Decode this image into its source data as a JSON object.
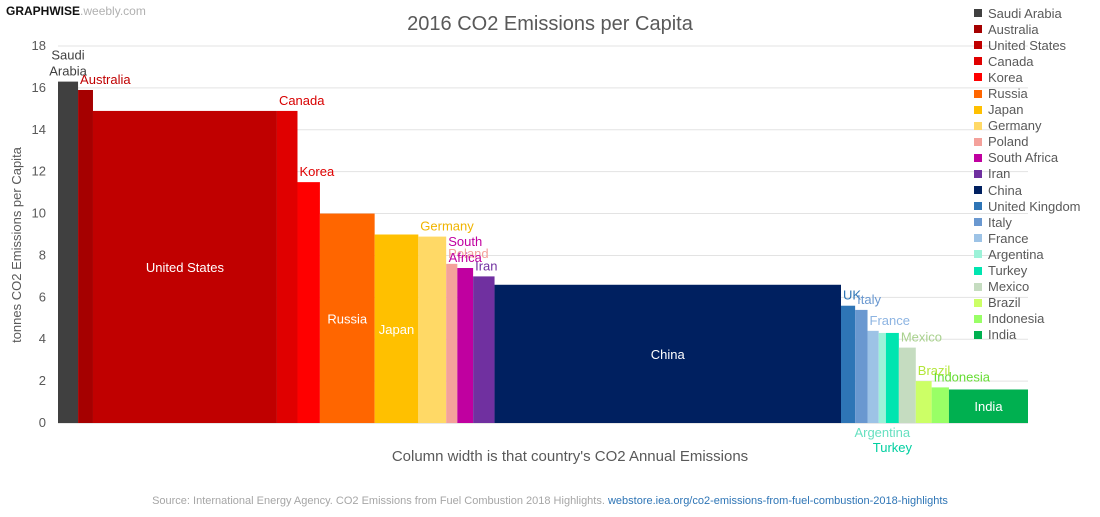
{
  "watermark": {
    "bold": "GRAPHWISE",
    "light": ".weebly.com"
  },
  "source": {
    "text": "Source: International Energy Agency. CO2 Emissions from Fuel Combustion 2018 Highlights.",
    "link": "webstore.iea.org/co2-emissions-from-fuel-combustion-2018-highlights",
    "link_color": "#2e75b6"
  },
  "chart_data": {
    "type": "bar",
    "variant": "variable-width",
    "title": "2016 CO2 Emissions per Capita",
    "ylabel": "tonnes CO2 Emissions per Capita",
    "xlabel": "Column width is that country's CO2 Annual Emissions",
    "ylim": [
      0,
      18
    ],
    "yticks": [
      0,
      2,
      4,
      6,
      8,
      10,
      12,
      14,
      16,
      18
    ],
    "grid": true,
    "legend_position": "right",
    "series": [
      {
        "name": "Saudi Arabia",
        "label": "Saudi Arabia",
        "value": 16.3,
        "width": 527,
        "color": "#404040",
        "label_color": "#404040",
        "label_mode": "above"
      },
      {
        "name": "Australia",
        "label": "Australia",
        "value": 15.9,
        "width": 392,
        "color": "#a50000",
        "label_color": "#c00000",
        "label_mode": "above"
      },
      {
        "name": "United States",
        "label": "United States",
        "value": 14.9,
        "width": 4833,
        "color": "#c00000",
        "label_color": "#ffffff",
        "label_mode": "inside"
      },
      {
        "name": "Canada",
        "label": "Canada",
        "value": 14.9,
        "width": 540,
        "color": "#e00000",
        "label_color": "#d80000",
        "label_mode": "above"
      },
      {
        "name": "Korea",
        "label": "Korea",
        "value": 11.5,
        "width": 589,
        "color": "#ff0000",
        "label_color": "#e00000",
        "label_mode": "above"
      },
      {
        "name": "Russia",
        "label": "Russia",
        "value": 10.0,
        "width": 1438,
        "color": "#ff6600",
        "label_color": "#ffffff",
        "label_mode": "inside"
      },
      {
        "name": "Japan",
        "label": "Japan",
        "value": 9.0,
        "width": 1147,
        "color": "#ffc000",
        "label_color": "#ffffff",
        "label_mode": "inside"
      },
      {
        "name": "Germany",
        "label": "Germany",
        "value": 8.9,
        "width": 732,
        "color": "#ffd966",
        "label_color": "#f0b400",
        "label_mode": "above"
      },
      {
        "name": "Poland",
        "label": "Poland",
        "value": 7.6,
        "width": 293,
        "color": "#f4a19b",
        "label_color": "#f4a19b",
        "label_mode": "above"
      },
      {
        "name": "South Africa",
        "label": "South Africa",
        "value": 7.4,
        "width": 415,
        "color": "#c000a0",
        "label_color": "#c000a0",
        "label_mode": "above"
      },
      {
        "name": "Iran",
        "label": "Iran",
        "value": 7.0,
        "width": 563,
        "color": "#7030a0",
        "label_color": "#7030a0",
        "label_mode": "above"
      },
      {
        "name": "China",
        "label": "China",
        "value": 6.6,
        "width": 9102,
        "color": "#002060",
        "label_color": "#ffffff",
        "label_mode": "inside"
      },
      {
        "name": "United Kingdom",
        "label": "UK",
        "value": 5.6,
        "width": 371,
        "color": "#2e75b6",
        "label_color": "#2e75b6",
        "label_mode": "above"
      },
      {
        "name": "Italy",
        "label": "Italy",
        "value": 5.4,
        "width": 326,
        "color": "#6a98d0",
        "label_color": "#6a98d0",
        "label_mode": "above"
      },
      {
        "name": "France",
        "label": "France",
        "value": 4.4,
        "width": 293,
        "color": "#9dc3e6",
        "label_color": "#8db4e2",
        "label_mode": "above"
      },
      {
        "name": "Argentina",
        "label": "Argentina",
        "value": 4.3,
        "width": 190,
        "color": "#9cf2d8",
        "label_color": "#66e0c0",
        "label_mode": "below"
      },
      {
        "name": "Turkey",
        "label": "Turkey",
        "value": 4.3,
        "width": 340,
        "color": "#00e5b0",
        "label_color": "#00cfa0",
        "label_mode": "below"
      },
      {
        "name": "Mexico",
        "label": "Mexico",
        "value": 3.6,
        "width": 445,
        "color": "#c5dcc0",
        "label_color": "#a9d18e",
        "label_mode": "above"
      },
      {
        "name": "Brazil",
        "label": "Brazil",
        "value": 2.0,
        "width": 416,
        "color": "#ccff66",
        "label_color": "#b3e639",
        "label_mode": "above"
      },
      {
        "name": "Indonesia",
        "label": "Indonesia",
        "value": 1.7,
        "width": 455,
        "color": "#99ff66",
        "label_color": "#66dd33",
        "label_mode": "above"
      },
      {
        "name": "India",
        "label": "India",
        "value": 1.6,
        "width": 2077,
        "color": "#00b050",
        "label_color": "#ffffff",
        "label_mode": "inside"
      }
    ]
  }
}
